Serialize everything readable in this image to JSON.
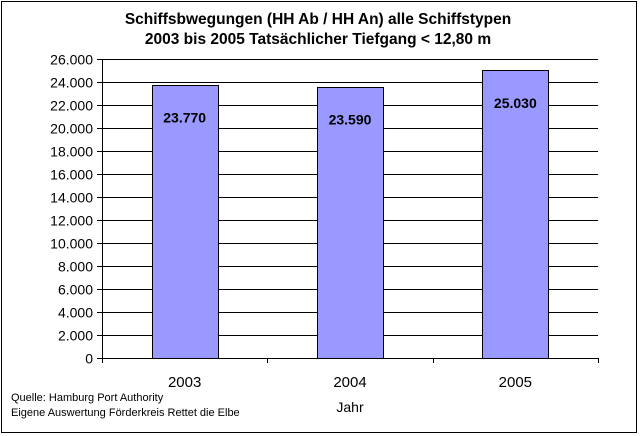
{
  "chart_data": {
    "type": "bar",
    "title_line1": "Schiffsbwegungen (HH Ab / HH An) alle Schiffstypen",
    "title_line2": "2003 bis 2005  Tatsächlicher Tiefgang < 12,80 m",
    "xlabel": "Jahr",
    "ylabel": "",
    "categories": [
      "2003",
      "2004",
      "2005"
    ],
    "values": [
      23770,
      23590,
      25030
    ],
    "data_labels": [
      "23.770",
      "23.590",
      "25.030"
    ],
    "ylim": [
      0,
      26000
    ],
    "yticks": [
      0,
      2000,
      4000,
      6000,
      8000,
      10000,
      12000,
      14000,
      16000,
      18000,
      20000,
      22000,
      24000,
      26000
    ],
    "ytick_labels": [
      "0",
      "2.000",
      "4.000",
      "6.000",
      "8.000",
      "10.000",
      "12.000",
      "14.000",
      "16.000",
      "18.000",
      "20.000",
      "22.000",
      "24.000",
      "26.000"
    ],
    "grid": true,
    "bar_color": "#9999ff",
    "plot_background": "#ffffff"
  },
  "footer": {
    "line1": "Quelle: Hamburg Port Authority",
    "line2": "Eigene Auswertung Förderkreis Rettet die Elbe"
  }
}
